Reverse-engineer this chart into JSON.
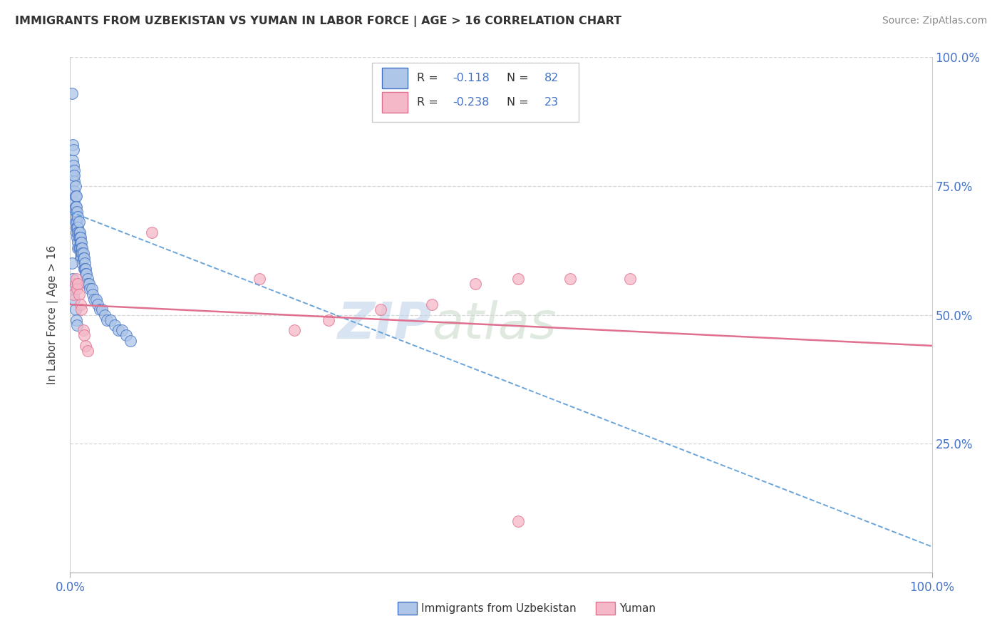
{
  "title": "IMMIGRANTS FROM UZBEKISTAN VS YUMAN IN LABOR FORCE | AGE > 16 CORRELATION CHART",
  "source": "Source: ZipAtlas.com",
  "ylabel": "In Labor Force | Age > 16",
  "xlim": [
    0,
    1.0
  ],
  "ylim": [
    0,
    1.0
  ],
  "blue_color": "#aec6e8",
  "blue_edge": "#4472c4",
  "pink_color": "#f4b8c8",
  "pink_edge": "#e07090",
  "blue_line_color": "#5b9bd5",
  "pink_line_color": "#e07090",
  "watermark": "ZIPatlas",
  "background_color": "#ffffff",
  "grid_color": "#d8d8d8",
  "title_color": "#333333",
  "source_color": "#888888",
  "axis_label_color": "#4472c4",
  "blue_slope": -0.65,
  "blue_intercept": 0.7,
  "pink_slope": -0.08,
  "pink_intercept": 0.52,
  "uzbekistan_x": [
    0.002,
    0.003,
    0.003,
    0.004,
    0.004,
    0.004,
    0.005,
    0.005,
    0.005,
    0.005,
    0.005,
    0.006,
    0.006,
    0.006,
    0.006,
    0.006,
    0.007,
    0.007,
    0.007,
    0.007,
    0.007,
    0.008,
    0.008,
    0.008,
    0.008,
    0.009,
    0.009,
    0.009,
    0.009,
    0.009,
    0.01,
    0.01,
    0.01,
    0.01,
    0.011,
    0.011,
    0.011,
    0.012,
    0.012,
    0.012,
    0.012,
    0.013,
    0.013,
    0.013,
    0.014,
    0.014,
    0.014,
    0.015,
    0.015,
    0.016,
    0.016,
    0.017,
    0.017,
    0.018,
    0.018,
    0.019,
    0.02,
    0.02,
    0.022,
    0.023,
    0.025,
    0.026,
    0.028,
    0.03,
    0.032,
    0.034,
    0.037,
    0.04,
    0.043,
    0.047,
    0.052,
    0.056,
    0.06,
    0.065,
    0.07,
    0.002,
    0.003,
    0.004,
    0.005,
    0.006,
    0.007,
    0.008
  ],
  "uzbekistan_y": [
    0.93,
    0.83,
    0.8,
    0.82,
    0.79,
    0.77,
    0.78,
    0.76,
    0.74,
    0.77,
    0.72,
    0.75,
    0.73,
    0.71,
    0.7,
    0.68,
    0.73,
    0.71,
    0.69,
    0.67,
    0.66,
    0.7,
    0.68,
    0.67,
    0.65,
    0.69,
    0.67,
    0.66,
    0.64,
    0.63,
    0.68,
    0.66,
    0.65,
    0.63,
    0.66,
    0.65,
    0.63,
    0.65,
    0.64,
    0.62,
    0.61,
    0.64,
    0.63,
    0.61,
    0.63,
    0.62,
    0.6,
    0.62,
    0.61,
    0.61,
    0.59,
    0.6,
    0.59,
    0.59,
    0.58,
    0.58,
    0.57,
    0.56,
    0.56,
    0.55,
    0.55,
    0.54,
    0.53,
    0.53,
    0.52,
    0.51,
    0.51,
    0.5,
    0.49,
    0.49,
    0.48,
    0.47,
    0.47,
    0.46,
    0.45,
    0.6,
    0.57,
    0.55,
    0.53,
    0.51,
    0.49,
    0.48
  ],
  "yuman_x": [
    0.004,
    0.006,
    0.007,
    0.008,
    0.009,
    0.01,
    0.012,
    0.013,
    0.015,
    0.016,
    0.018,
    0.02,
    0.095,
    0.22,
    0.26,
    0.3,
    0.36,
    0.42,
    0.47,
    0.52,
    0.58,
    0.65,
    0.52
  ],
  "yuman_y": [
    0.54,
    0.56,
    0.57,
    0.55,
    0.56,
    0.54,
    0.52,
    0.51,
    0.47,
    0.46,
    0.44,
    0.43,
    0.66,
    0.57,
    0.47,
    0.49,
    0.51,
    0.52,
    0.56,
    0.57,
    0.57,
    0.57,
    0.1
  ]
}
